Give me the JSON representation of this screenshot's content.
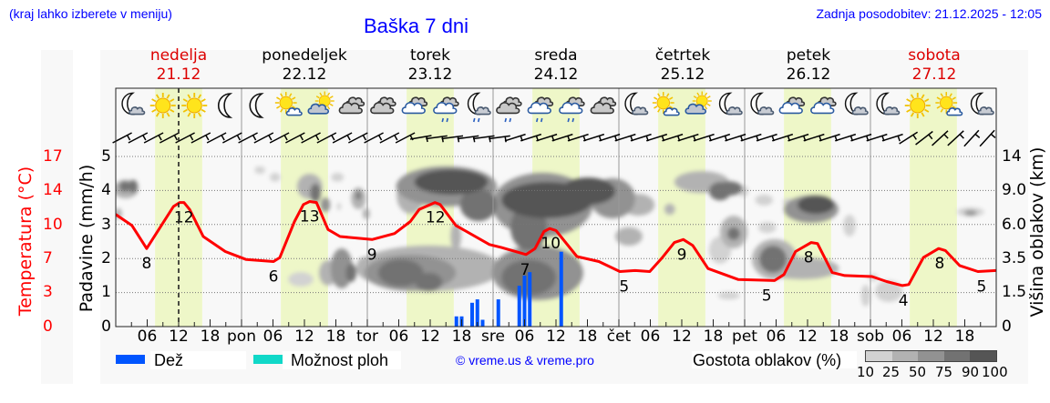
{
  "header": {
    "location_hint": "(kraj lahko izberete v meniju)",
    "title": "Baška 7 dni",
    "last_update": "Zadnja posodobitev: 21.12.2025 - 12:05"
  },
  "days": [
    {
      "name": "nedelja",
      "date": "21.12",
      "highlight": true
    },
    {
      "name": "ponedeljek",
      "date": "22.12",
      "highlight": false
    },
    {
      "name": "torek",
      "date": "23.12",
      "highlight": false
    },
    {
      "name": "sreda",
      "date": "24.12",
      "highlight": false
    },
    {
      "name": "četrtek",
      "date": "25.12",
      "highlight": false
    },
    {
      "name": "petek",
      "date": "26.12",
      "highlight": false
    },
    {
      "name": "sobota",
      "date": "27.12",
      "highlight": true
    }
  ],
  "axes": {
    "temp_title": "Temperatura (°C)",
    "precip_title": "Padavine (mm/h)",
    "cloud_title": "Višina oblakov (km)",
    "temp_ticks": [
      "17",
      "14",
      "10",
      "7",
      "3",
      "0"
    ],
    "precip_ticks": [
      "5",
      "4",
      "3",
      "2",
      "1",
      "0"
    ],
    "cloud_ticks": [
      "14",
      "9.0",
      "6.0",
      "3.5",
      "1.5",
      "0"
    ],
    "x_ticks": [
      "06",
      "12",
      "18",
      "pon",
      "06",
      "12",
      "18",
      "tor",
      "06",
      "12",
      "18",
      "sre",
      "06",
      "12",
      "18",
      "čet",
      "06",
      "12",
      "18",
      "pet",
      "06",
      "12",
      "18",
      "sob",
      "06",
      "12",
      "18"
    ]
  },
  "legend": {
    "rain": "Dež",
    "showers": "Možnost ploh",
    "copyright": "© vreme.us & vreme.pro",
    "density_title": "Gostota oblakov (%)",
    "density_ticks": [
      "10",
      "25",
      "50",
      "75",
      "90",
      "100"
    ]
  },
  "colors": {
    "header_text": "#0000ff",
    "temperature": "#ff0000",
    "rain": "#0055ff",
    "showers": "#10d8c8",
    "daylight": "#eef7c8",
    "highlight_day": "#dd0000",
    "cloud_density": [
      "#d2d2d2",
      "#b2b2b2",
      "#929292",
      "#727272",
      "#555555"
    ]
  },
  "chart_data": {
    "type": "meteogram",
    "title": "Baška 7 dni",
    "x_range_hours": [
      0,
      168
    ],
    "now_hour": 12,
    "daylight_hours": [
      7.5,
      16.5
    ],
    "temperature": {
      "ylabel": "Temperatura (°C)",
      "ylim": [
        0,
        17
      ],
      "points": [
        [
          0,
          11.2
        ],
        [
          3.1,
          10.1
        ],
        [
          5.9,
          7.8
        ],
        [
          11,
          12.0
        ],
        [
          12.2,
          12.4
        ],
        [
          13,
          12.4
        ],
        [
          14.1,
          11.7
        ],
        [
          16.7,
          9.0
        ],
        [
          20.9,
          7.5
        ],
        [
          24.9,
          6.7
        ],
        [
          30.1,
          6.5
        ],
        [
          31.3,
          6.9
        ],
        [
          34.1,
          10.5
        ],
        [
          35.8,
          12.2
        ],
        [
          37,
          12.5
        ],
        [
          38.3,
          12.4
        ],
        [
          40.5,
          9.7
        ],
        [
          42.8,
          9.0
        ],
        [
          47,
          8.8
        ],
        [
          48.9,
          8.7
        ],
        [
          53.2,
          9.3
        ],
        [
          56.2,
          10.5
        ],
        [
          57.9,
          11.7
        ],
        [
          60.9,
          12.4
        ],
        [
          61.9,
          12.2
        ],
        [
          64.9,
          10.1
        ],
        [
          71.3,
          8.2
        ],
        [
          73.6,
          7.9
        ],
        [
          78.3,
          7.2
        ],
        [
          80,
          7.8
        ],
        [
          81.7,
          9.5
        ],
        [
          82.8,
          9.8
        ],
        [
          84,
          9.6
        ],
        [
          88,
          7.0
        ],
        [
          92.2,
          6.5
        ],
        [
          96.2,
          5.5
        ],
        [
          99.1,
          5.6
        ],
        [
          101.9,
          5.5
        ],
        [
          104.3,
          6.9
        ],
        [
          106.6,
          8.4
        ],
        [
          108.3,
          8.7
        ],
        [
          110.1,
          8.1
        ],
        [
          113,
          5.8
        ],
        [
          118.8,
          4.7
        ],
        [
          125.7,
          4.6
        ],
        [
          127.5,
          5.2
        ],
        [
          129.7,
          7.5
        ],
        [
          132.7,
          8.4
        ],
        [
          133.9,
          8.3
        ],
        [
          136.7,
          5.4
        ],
        [
          139.1,
          5.1
        ],
        [
          144.3,
          5.0
        ],
        [
          147.1,
          4.5
        ],
        [
          150.1,
          4.1
        ],
        [
          151.3,
          4.2
        ],
        [
          154.1,
          6.9
        ],
        [
          157,
          7.8
        ],
        [
          158.3,
          7.6
        ],
        [
          161,
          6.1
        ],
        [
          164.5,
          5.5
        ],
        [
          168,
          5.6
        ]
      ]
    },
    "temperature_labels": [
      {
        "h": 5.9,
        "t": 7.8,
        "label": "8"
      },
      {
        "h": 13.0,
        "t": 12.4,
        "label": "12"
      },
      {
        "h": 30.1,
        "t": 6.5,
        "label": "6"
      },
      {
        "h": 37.0,
        "t": 12.5,
        "label": "13"
      },
      {
        "h": 48.9,
        "t": 8.7,
        "label": "9"
      },
      {
        "h": 61.0,
        "t": 12.4,
        "label": "12"
      },
      {
        "h": 78.1,
        "t": 7.2,
        "label": "7"
      },
      {
        "h": 83.0,
        "t": 9.8,
        "label": "10"
      },
      {
        "h": 97.0,
        "t": 5.5,
        "label": "5"
      },
      {
        "h": 108.0,
        "t": 8.7,
        "label": "9"
      },
      {
        "h": 124.2,
        "t": 4.6,
        "label": "5"
      },
      {
        "h": 132.2,
        "t": 8.4,
        "label": "8"
      },
      {
        "h": 150.3,
        "t": 4.1,
        "label": "4"
      },
      {
        "h": 157.2,
        "t": 7.8,
        "label": "8"
      },
      {
        "h": 165.2,
        "t": 5.5,
        "label": "5"
      }
    ],
    "precipitation": {
      "ylabel": "Padavine (mm/h)",
      "ylim": [
        0,
        5
      ],
      "bars": [
        {
          "h": 65,
          "value": 0.3,
          "type": "rain"
        },
        {
          "h": 66,
          "value": 0.3,
          "type": "rain"
        },
        {
          "h": 68,
          "value": 0.7,
          "type": "rain"
        },
        {
          "h": 69,
          "value": 0.8,
          "type": "rain"
        },
        {
          "h": 70,
          "value": 0.2,
          "type": "rain"
        },
        {
          "h": 73,
          "value": 0.8,
          "type": "rain"
        },
        {
          "h": 77,
          "value": 1.2,
          "type": "rain"
        },
        {
          "h": 78,
          "value": 1.5,
          "type": "rain"
        },
        {
          "h": 79,
          "value": 1.6,
          "type": "rain"
        },
        {
          "h": 85,
          "value": 2.2,
          "type": "rain"
        }
      ]
    },
    "cloud_height_axis": {
      "ylabel": "Višina oblakov (km)",
      "ticks": [
        "0",
        "1.5",
        "3.5",
        "6.0",
        "9.0",
        "14"
      ]
    },
    "cloud_density": {
      "levels_percent": [
        10,
        25,
        50,
        75,
        90,
        100
      ],
      "blobs_h_level_rx_ry_density": [
        [
          1.9,
          4.04,
          2.4,
          0.27,
          1
        ],
        [
          1.7,
          4.12,
          1.0,
          0.16,
          3
        ],
        [
          3.3,
          4.12,
          0.9,
          0.19,
          3
        ],
        [
          0.5,
          3.32,
          0.7,
          0.16,
          1
        ],
        [
          27.5,
          4.6,
          1.0,
          0.11,
          0
        ],
        [
          30.4,
          4.39,
          1.0,
          0.13,
          0
        ],
        [
          37.0,
          4.12,
          2.4,
          0.37,
          1
        ],
        [
          38.1,
          3.93,
          1.0,
          0.27,
          3
        ],
        [
          40.0,
          3.58,
          0.9,
          0.21,
          2
        ],
        [
          42.3,
          4.39,
          1.2,
          0.13,
          0
        ],
        [
          42.6,
          3.53,
          0.4,
          0.11,
          0
        ],
        [
          46.3,
          3.77,
          1.4,
          0.32,
          1
        ],
        [
          46.3,
          3.85,
          0.5,
          0.13,
          3
        ],
        [
          47.8,
          3.32,
          0.7,
          0.16,
          1
        ],
        [
          35.3,
          1.39,
          2.4,
          0.21,
          0
        ],
        [
          40.5,
          1.58,
          1.7,
          0.37,
          1
        ],
        [
          43.1,
          1.71,
          2.1,
          0.59,
          2
        ],
        [
          44.9,
          1.58,
          1.0,
          0.27,
          3
        ],
        [
          47.5,
          1.84,
          1.4,
          0.21,
          1
        ],
        [
          63.1,
          4.12,
          9.6,
          0.59,
          2
        ],
        [
          64.0,
          4.25,
          7.0,
          0.37,
          4
        ],
        [
          56.2,
          3.85,
          2.6,
          0.53,
          1
        ],
        [
          69.2,
          3.58,
          3.5,
          0.48,
          3
        ],
        [
          64.9,
          2.65,
          1.0,
          0.4,
          1
        ],
        [
          59.7,
          1.71,
          13.9,
          0.67,
          1
        ],
        [
          56.2,
          1.58,
          8.7,
          0.53,
          2
        ],
        [
          54.4,
          1.58,
          4.3,
          0.4,
          3
        ],
        [
          59.7,
          1.31,
          2.6,
          0.27,
          3
        ],
        [
          51.0,
          1.58,
          3.5,
          0.27,
          2
        ],
        [
          68.3,
          1.71,
          5.2,
          0.37,
          1
        ],
        [
          81.4,
          3.58,
          9.6,
          0.94,
          2
        ],
        [
          82.3,
          3.72,
          8.7,
          0.53,
          4
        ],
        [
          90.1,
          3.98,
          5.2,
          0.4,
          4
        ],
        [
          78.8,
          2.91,
          3.5,
          0.67,
          3
        ],
        [
          94.8,
          3.77,
          4.3,
          0.59,
          2
        ],
        [
          97.9,
          2.65,
          2.6,
          0.27,
          1
        ],
        [
          80.5,
          1.58,
          8.7,
          0.8,
          2
        ],
        [
          78.8,
          1.44,
          5.2,
          0.53,
          3
        ],
        [
          84.3,
          1.31,
          3.5,
          0.4,
          1
        ],
        [
          99.7,
          3.58,
          3.1,
          0.32,
          1
        ],
        [
          105.7,
          3.45,
          1.0,
          0.16,
          1
        ],
        [
          111.8,
          4.25,
          5.2,
          0.32,
          1
        ],
        [
          115.3,
          3.98,
          2.1,
          0.27,
          3
        ],
        [
          117.0,
          4.06,
          2.6,
          0.21,
          3
        ],
        [
          117.9,
          2.78,
          2.6,
          0.48,
          1
        ],
        [
          117.9,
          2.73,
          1.2,
          0.19,
          3
        ],
        [
          119.7,
          3.98,
          1.0,
          0.16,
          0
        ],
        [
          115.3,
          2.25,
          2.1,
          0.4,
          0
        ],
        [
          124.3,
          2.91,
          1.7,
          0.16,
          0
        ],
        [
          123.7,
          3.72,
          1.7,
          0.16,
          0
        ],
        [
          125.7,
          1.98,
          4.3,
          0.59,
          1
        ],
        [
          125.4,
          1.98,
          2.6,
          0.4,
          3
        ],
        [
          132.7,
          3.45,
          5.2,
          0.4,
          2
        ],
        [
          133.6,
          3.58,
          3.5,
          0.27,
          4
        ],
        [
          140.0,
          2.97,
          1.2,
          0.32,
          0
        ],
        [
          131.0,
          1.71,
          7.0,
          0.32,
          1
        ],
        [
          128.3,
          3.66,
          1.0,
          0.11,
          0
        ],
        [
          117.0,
          0.91,
          2.1,
          0.11,
          0
        ],
        [
          143.1,
          0.91,
          0.9,
          0.32,
          0
        ],
        [
          147.5,
          1.04,
          2.6,
          0.32,
          0
        ],
        [
          144.5,
          1.44,
          0.9,
          0.11,
          0
        ],
        [
          163.1,
          3.37,
          2.6,
          0.13,
          0
        ],
        [
          163.1,
          3.34,
          1.2,
          0.08,
          2
        ]
      ]
    },
    "weather_icons": [
      "moon-cloud",
      "sun",
      "sun",
      "moon",
      "moon",
      "sun-cloud",
      "cloud-sun",
      "cloud",
      "cloud",
      "cloud-blue",
      "cloud-blue-rain",
      "moon-cloud-rain",
      "cloud-rain",
      "cloud-blue-rain",
      "cloud-blue-rain",
      "cloud",
      "moon-cloud",
      "sun-cloud",
      "cloud-sun",
      "moon-cloud",
      "moon-cloud",
      "cloud-blue",
      "cloud-blue",
      "moon-cloud",
      "moon-cloud",
      "sun",
      "sun-cloud",
      "moon-cloud"
    ],
    "wind_barbs_angle_deg": [
      0,
      0,
      0,
      0,
      0,
      0,
      0,
      0,
      0,
      0,
      0,
      0,
      0,
      0,
      0,
      0,
      0,
      0,
      0,
      18,
      20,
      20,
      20,
      20,
      20,
      10,
      10,
      10,
      10,
      10,
      10,
      10,
      10,
      10,
      10,
      10,
      10,
      10,
      10,
      10,
      10,
      10,
      10,
      10,
      10,
      10,
      10,
      10,
      10,
      10,
      -5,
      -10,
      -15,
      -15,
      -20,
      -20
    ]
  }
}
